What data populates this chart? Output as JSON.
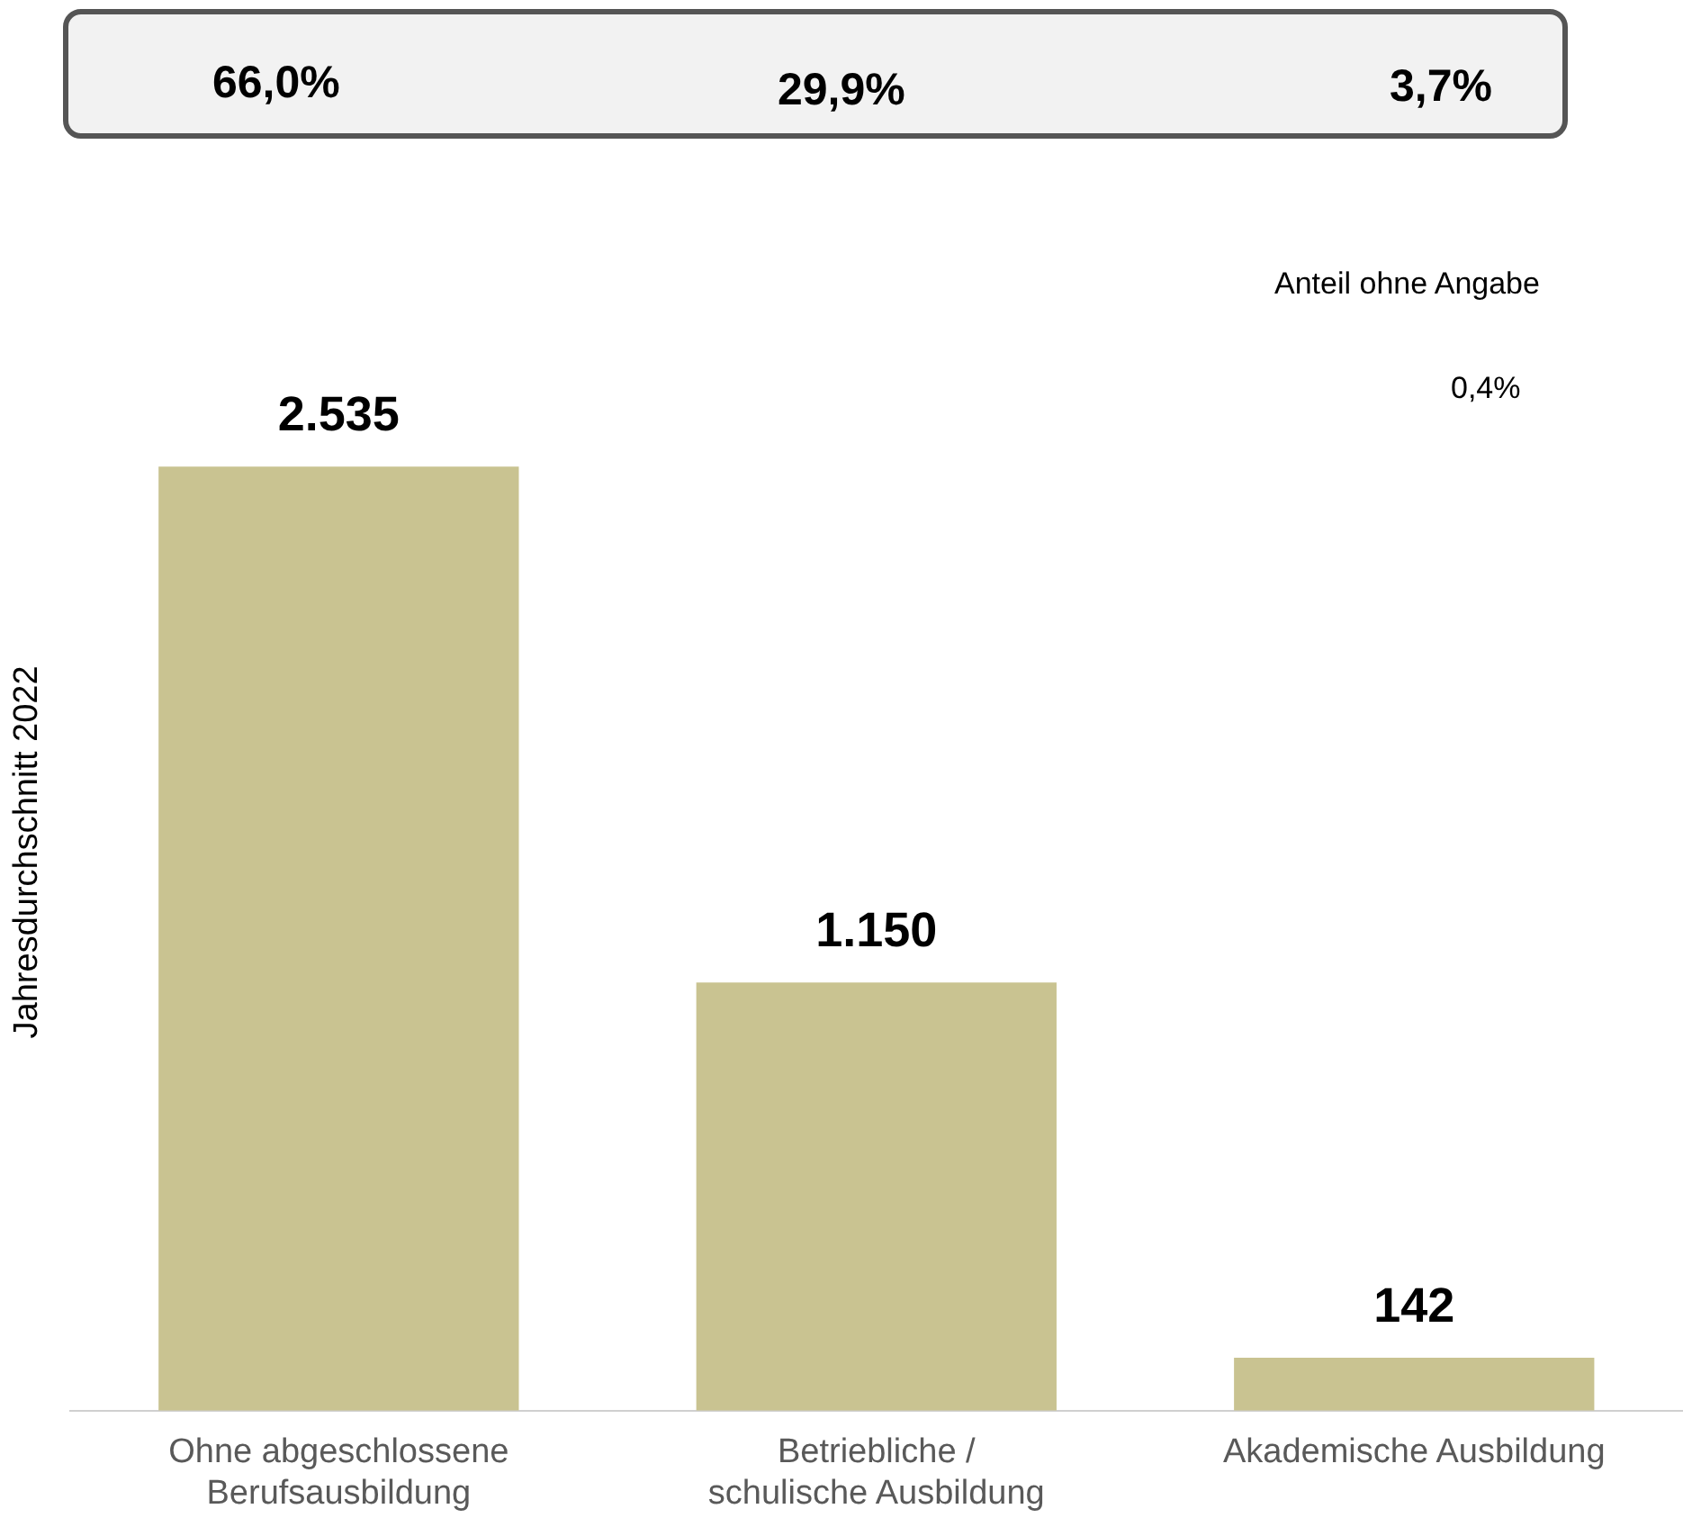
{
  "chart_data": {
    "type": "bar",
    "ylabel": "Jahresdurchschnitt 2022",
    "categories": [
      "Ohne abgeschlossene Berufsausbildung",
      "Betriebliche / schulische Ausbildung",
      "Akademische Ausbildung"
    ],
    "values": [
      2535,
      1150,
      142
    ],
    "value_labels": [
      "2.535",
      "1.150",
      "142"
    ],
    "color": "#c9c391",
    "grid": false,
    "legend": false,
    "annotations": [
      "66,0%",
      "29,9%",
      "3,7%",
      "Anteil ohne Angabe",
      "0,4%"
    ]
  }
}
